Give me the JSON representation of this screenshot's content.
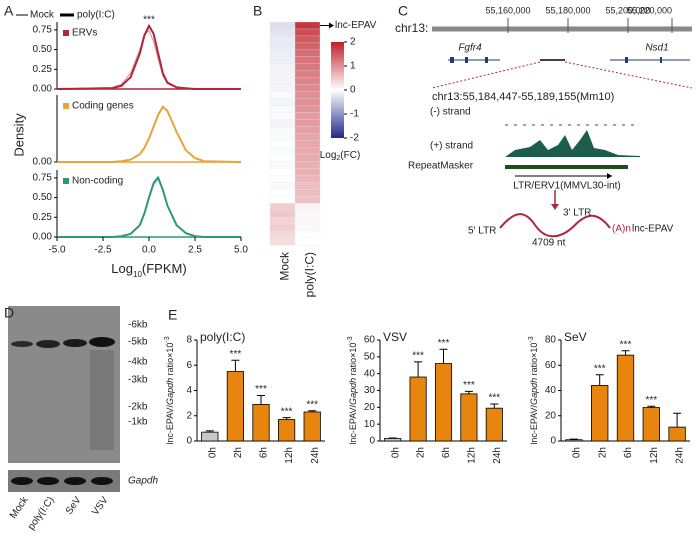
{
  "panel_labels": [
    "A",
    "B",
    "C",
    "D",
    "E"
  ],
  "chart_data": [
    {
      "type": "density",
      "series_names": [
        "Mock",
        "poly(I:C)"
      ],
      "annotation": "***",
      "ylabel": "Density",
      "xlabel": [
        "Log",
        "10",
        "(FPKM)"
      ],
      "xlim": [
        -5,
        5
      ],
      "ylim": [
        0,
        0.85
      ],
      "xticks": [
        {
          "value": -5,
          "label": "-5.0"
        },
        {
          "value": -2.5,
          "label": "-2.5"
        },
        {
          "value": 0,
          "label": "0.0"
        },
        {
          "value": 2.5,
          "label": "2.5"
        },
        {
          "value": 5,
          "label": "5.0"
        }
      ],
      "x": [
        -5,
        -2,
        -1.5,
        -1,
        -0.5,
        -0.25,
        0,
        0.25,
        0.5,
        0.75,
        1,
        1.5,
        2,
        2.5,
        3,
        5
      ],
      "subplots": [
        {
          "label": "ERVs",
          "color": "#b0263a",
          "yticks": [
            {
              "value": 0,
              "label": "0.00"
            },
            {
              "value": 0.25,
              "label": "0.25"
            },
            {
              "value": 0.5,
              "label": "0.50"
            },
            {
              "value": 0.75,
              "label": "0.75"
            }
          ],
          "series": [
            {
              "color": "#d98a93",
              "values": [
                0,
                0.02,
                0.06,
                0.2,
                0.5,
                0.7,
                0.74,
                0.6,
                0.38,
                0.17,
                0.07,
                0.02,
                0.01,
                0,
                0,
                0
              ]
            },
            {
              "color": "#b0263a",
              "values": [
                0,
                0.01,
                0.04,
                0.15,
                0.45,
                0.68,
                0.8,
                0.7,
                0.45,
                0.2,
                0.08,
                0.02,
                0.01,
                0,
                0,
                0
              ]
            }
          ]
        },
        {
          "label": "Coding genes",
          "color": "#e8a33a",
          "yticks": [
            {
              "value": 0,
              "label": "0.00"
            }
          ],
          "series": [
            {
              "color": "#f2cc8a",
              "values": [
                0,
                0,
                0.01,
                0.03,
                0.1,
                0.18,
                0.3,
                0.45,
                0.61,
                0.69,
                0.64,
                0.38,
                0.15,
                0.05,
                0.01,
                0
              ]
            },
            {
              "color": "#e8a33a",
              "values": [
                0,
                0,
                0.01,
                0.03,
                0.1,
                0.18,
                0.3,
                0.45,
                0.6,
                0.7,
                0.65,
                0.38,
                0.15,
                0.05,
                0.01,
                0
              ]
            }
          ]
        },
        {
          "label": "Non-coding",
          "color": "#2a9a73",
          "yticks": [
            {
              "value": 0,
              "label": "0.00"
            },
            {
              "value": 0.25,
              "label": "0.25"
            },
            {
              "value": 0.5,
              "label": "0.50"
            },
            {
              "value": 0.75,
              "label": "0.75"
            }
          ],
          "series": [
            {
              "color": "#8fcbb5",
              "values": [
                0,
                0,
                0.01,
                0.04,
                0.15,
                0.3,
                0.52,
                0.7,
                0.77,
                0.6,
                0.4,
                0.15,
                0.05,
                0.01,
                0,
                0
              ]
            },
            {
              "color": "#2a9a73",
              "values": [
                0,
                0,
                0.01,
                0.04,
                0.15,
                0.3,
                0.5,
                0.68,
                0.75,
                0.6,
                0.4,
                0.15,
                0.05,
                0.01,
                0,
                0
              ]
            }
          ]
        }
      ]
    },
    {
      "type": "heatmap",
      "columns": [
        "Mock",
        "poly(I:C)"
      ],
      "annotation": "lnc-EPAV",
      "lim": [
        -2,
        2
      ],
      "ticks": [
        2,
        1,
        0,
        -1,
        -2
      ],
      "label": [
        "Log",
        "2",
        "(FC)"
      ],
      "values": [
        [
          -0.3,
          1.8
        ],
        [
          -0.25,
          1.6
        ],
        [
          -0.2,
          1.5
        ],
        [
          -0.2,
          1.4
        ],
        [
          -0.15,
          1.3
        ],
        [
          -0.15,
          1.25
        ],
        [
          -0.1,
          1.2
        ],
        [
          -0.1,
          1.15
        ],
        [
          -0.1,
          1.1
        ],
        [
          -0.1,
          1.05
        ],
        [
          -0.05,
          1.0
        ],
        [
          -0.1,
          1.0
        ],
        [
          -0.05,
          0.95
        ],
        [
          -0.05,
          0.9
        ],
        [
          -0.1,
          0.9
        ],
        [
          -0.05,
          0.85
        ],
        [
          -0.05,
          0.8
        ],
        [
          0,
          0.8
        ],
        [
          -0.05,
          0.75
        ],
        [
          0,
          0.75
        ],
        [
          -0.05,
          0.7
        ],
        [
          0,
          0.7
        ],
        [
          0,
          0.65
        ],
        [
          -0.05,
          0.6
        ],
        [
          0,
          0.6
        ],
        [
          0,
          0.55
        ],
        [
          0.45,
          0.1
        ],
        [
          0.5,
          0.05
        ],
        [
          0.4,
          0.05
        ],
        [
          0.45,
          0.05
        ],
        [
          0.35,
          0
        ],
        [
          0.3,
          0
        ]
      ]
    },
    {
      "type": "bar",
      "title": "poly(I:C)",
      "ylabel": [
        "lnc-EPAV/",
        "Gapdh",
        " ratio×10",
        "-3"
      ],
      "categories": [
        "0h",
        "2h",
        "6h",
        "12h",
        "24h"
      ],
      "values": [
        0.7,
        5.5,
        2.9,
        1.7,
        2.3
      ],
      "errors": [
        0.1,
        0.9,
        0.7,
        0.15,
        0.1
      ],
      "significance": [
        null,
        "***",
        "***",
        "***",
        "***"
      ],
      "colors": [
        "#c8c8c8",
        "#e8850f",
        "#e8850f",
        "#e8850f",
        "#e8850f"
      ],
      "ylim": [
        0,
        8
      ],
      "yticks": [
        0,
        2,
        4,
        6,
        8
      ]
    },
    {
      "type": "bar",
      "title": "VSV",
      "ylabel": [
        "lnc-EPAV/",
        "Gapdh",
        " ratio×10",
        "-3"
      ],
      "categories": [
        "0h",
        "2h",
        "6h",
        "12h",
        "24h"
      ],
      "values": [
        1.5,
        38,
        46,
        28,
        19.5
      ],
      "errors": [
        0.3,
        9,
        8.5,
        1.5,
        2.5
      ],
      "significance": [
        null,
        "***",
        "***",
        "***",
        "***"
      ],
      "colors": [
        "#c8c8c8",
        "#e8850f",
        "#e8850f",
        "#e8850f",
        "#e8850f"
      ],
      "ylim": [
        0,
        60
      ],
      "yticks": [
        0,
        10,
        20,
        30,
        40,
        50,
        60
      ]
    },
    {
      "type": "bar",
      "title": "SeV",
      "ylabel": [
        "lnc-EPAV/",
        "Gapdh",
        " ratio×10",
        "-3"
      ],
      "categories": [
        "0h",
        "2h",
        "6h",
        "12h",
        "24h"
      ],
      "values": [
        1,
        44,
        68,
        26.5,
        11
      ],
      "errors": [
        0.5,
        8.5,
        3.5,
        1,
        11
      ],
      "significance": [
        null,
        "***",
        "***",
        "***",
        null
      ],
      "colors": [
        "#c8c8c8",
        "#e8850f",
        "#e8850f",
        "#e8850f",
        "#e8850f"
      ],
      "ylim": [
        0,
        80
      ],
      "yticks": [
        0,
        20,
        40,
        60,
        80
      ]
    }
  ],
  "genome": {
    "chrom": "chr13:",
    "ticks": [
      "55,160,000",
      "55,180,000",
      "55,200,000",
      "55,220,000"
    ],
    "genes": [
      "Fgfr4",
      "Nsd1"
    ],
    "region": "chr13:55,184,447-55,189,155(Mm10)",
    "tracks": [
      "(-) strand",
      "(+) strand",
      "RepeatMasker"
    ],
    "repeat": "LTR/ERV1(MMVL30-int)",
    "ltr5": "5' LTR",
    "ltr3": "3' LTR",
    "polya": "(A)n",
    "transcript": "lnc-EPAV",
    "length": "4709 nt"
  },
  "blot": {
    "markers": [
      "-6kb",
      "-5kb",
      "-4kb",
      "-3kb",
      "-2kb",
      "-1kb"
    ],
    "loading": "Gapdh",
    "lanes": [
      "Mock",
      "poly(I:C)",
      "SeV",
      "VSV"
    ]
  }
}
